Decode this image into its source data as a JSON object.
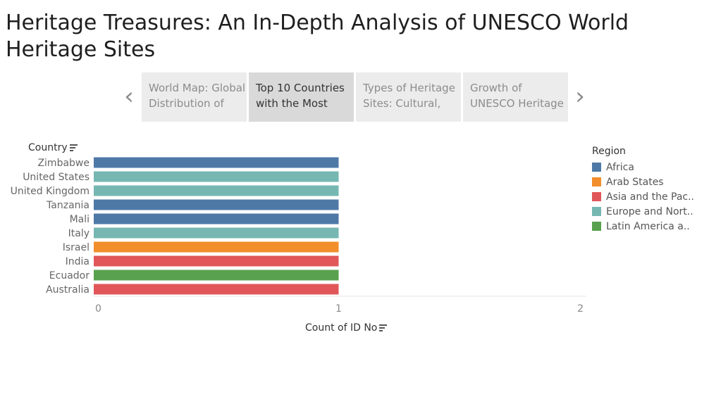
{
  "title": "Heritage Treasures: An In-Depth Analysis of UNESCO World Heritage Sites",
  "nav": {
    "prev_icon": "chevron-left-icon",
    "next_icon": "chevron-right-icon",
    "tabs": [
      {
        "label": "World Map: Global Distribution of",
        "active": false
      },
      {
        "label": "Top 10 Countries with the Most",
        "active": true
      },
      {
        "label": "Types of Heritage Sites: Cultural,",
        "active": false
      },
      {
        "label": "Growth of UNESCO Heritage",
        "active": false
      }
    ]
  },
  "legend": {
    "title": "Region",
    "items": [
      {
        "label": "Africa",
        "color": "#4e79a7"
      },
      {
        "label": "Arab States",
        "color": "#f28e2b"
      },
      {
        "label": "Asia and the Pac..",
        "color": "#e15759"
      },
      {
        "label": "Europe and Nort..",
        "color": "#76b7b2"
      },
      {
        "label": "Latin America a..",
        "color": "#59a14f"
      }
    ]
  },
  "chart_data": {
    "type": "bar",
    "orientation": "horizontal",
    "ylabel": "Country",
    "xlabel": "Count of ID No",
    "xlim": [
      0,
      2
    ],
    "xticks": [
      "0",
      "1",
      "2"
    ],
    "categories": [
      "Zimbabwe",
      "United States",
      "United Kingdom",
      "Tanzania",
      "Mali",
      "Italy",
      "Israel",
      "India",
      "Ecuador",
      "Australia"
    ],
    "values": [
      1,
      1,
      1,
      1,
      1,
      1,
      1,
      1,
      1,
      1
    ],
    "regions": [
      "Africa",
      "Europe and Nort..",
      "Europe and Nort..",
      "Africa",
      "Africa",
      "Europe and Nort..",
      "Arab States",
      "Asia and the Pac..",
      "Latin America a..",
      "Asia and the Pac.."
    ],
    "grid": false,
    "legend_position": "right"
  }
}
